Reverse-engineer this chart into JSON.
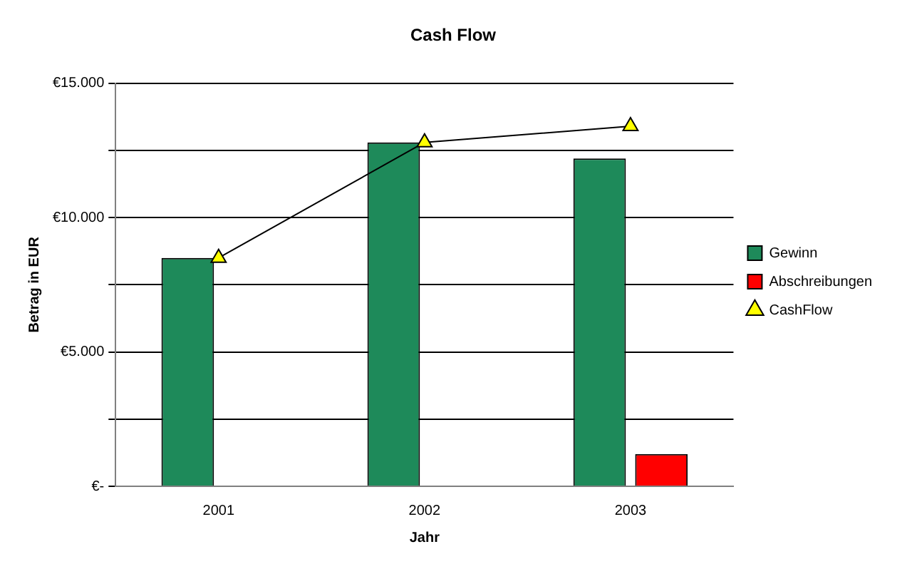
{
  "chart_data": {
    "type": "bar",
    "title": "Cash Flow",
    "xlabel": "Jahr",
    "ylabel": "Betrag in EUR",
    "categories": [
      "2001",
      "2002",
      "2003"
    ],
    "series": [
      {
        "name": "Gewinn",
        "color": "#1e8a5a",
        "values": [
          8500,
          12800,
          12200
        ]
      },
      {
        "name": "Abschreibungen",
        "color": "#ff0000",
        "values": [
          0,
          0,
          1200
        ]
      },
      {
        "name": "CashFlow",
        "type": "line",
        "color": "#ffff00",
        "values": [
          8500,
          12800,
          13400
        ],
        "marker": "triangle",
        "line_style": "solid"
      }
    ],
    "ylim": [
      0,
      15000
    ],
    "yticks": [
      {
        "value": 0,
        "label": "€-"
      },
      {
        "value": 2500,
        "label": null
      },
      {
        "value": 5000,
        "label": "€5.000"
      },
      {
        "value": 7500,
        "label": null
      },
      {
        "value": 10000,
        "label": "€10.000"
      },
      {
        "value": 12500,
        "label": null
      },
      {
        "value": 15000,
        "label": "€15.000"
      }
    ],
    "grid": "y",
    "legend": "right"
  }
}
